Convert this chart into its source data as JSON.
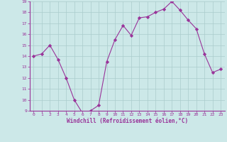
{
  "x": [
    0,
    1,
    2,
    3,
    4,
    5,
    6,
    7,
    8,
    9,
    10,
    11,
    12,
    13,
    14,
    15,
    16,
    17,
    18,
    19,
    20,
    21,
    22,
    23
  ],
  "y": [
    14.0,
    14.2,
    15.0,
    13.7,
    12.0,
    10.0,
    8.8,
    9.0,
    9.5,
    13.5,
    15.5,
    16.8,
    15.9,
    17.5,
    17.6,
    18.0,
    18.3,
    19.0,
    18.2,
    17.3,
    16.5,
    14.2,
    12.5,
    12.8
  ],
  "line_color": "#993399",
  "marker": "D",
  "marker_size": 2.2,
  "bg_color": "#cce8e8",
  "grid_color": "#aacccc",
  "xlabel": "Windchill (Refroidissement éolien,°C)",
  "xlabel_color": "#993399",
  "tick_color": "#993399",
  "ylim": [
    9,
    19
  ],
  "xlim": [
    -0.5,
    23.5
  ],
  "yticks": [
    9,
    10,
    11,
    12,
    13,
    14,
    15,
    16,
    17,
    18,
    19
  ],
  "xticks": [
    0,
    1,
    2,
    3,
    4,
    5,
    6,
    7,
    8,
    9,
    10,
    11,
    12,
    13,
    14,
    15,
    16,
    17,
    18,
    19,
    20,
    21,
    22,
    23
  ]
}
